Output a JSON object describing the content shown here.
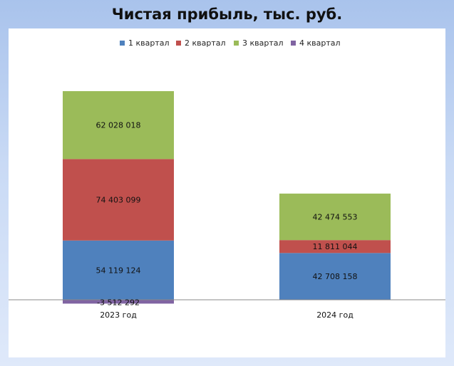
{
  "colors": {
    "q1": "#4f81bd",
    "q2": "#c0504d",
    "q3": "#9bbb59",
    "q4": "#8064a2"
  },
  "chart_data": {
    "type": "bar",
    "stacked": true,
    "title": "Чистая прибыль, тыс. руб.",
    "categories": [
      "2023 год",
      "2024 год"
    ],
    "series": [
      {
        "name": "1 квартал",
        "values": [
          54119124,
          42708158
        ],
        "labels": [
          "54 119 124",
          "42 708 158"
        ]
      },
      {
        "name": "2 квартал",
        "values": [
          74403099,
          11811044
        ],
        "labels": [
          "74 403 099",
          "11 811 044"
        ]
      },
      {
        "name": "3 квартал",
        "values": [
          62028018,
          42474553
        ],
        "labels": [
          "62 028 018",
          "42 474 553"
        ]
      },
      {
        "name": "4 квартал",
        "values": [
          -3512292,
          null
        ],
        "labels": [
          "-3 512 292",
          ""
        ]
      }
    ],
    "legend_position": "top",
    "grid": false
  }
}
